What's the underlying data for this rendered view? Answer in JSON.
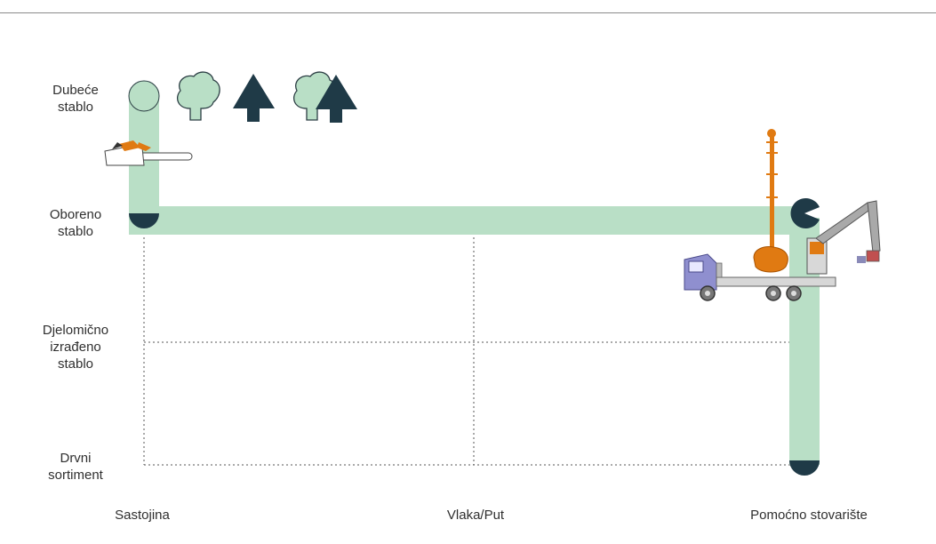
{
  "y_labels": {
    "standing_tree": [
      "Dubeće",
      "stablo"
    ],
    "felled_tree": [
      "Oboreno",
      "stablo"
    ],
    "partially_processed": [
      "Djelomično",
      "izrađeno",
      "stablo"
    ],
    "assortment": [
      "Drvni",
      "sortiment"
    ]
  },
  "x_labels": {
    "stand": "Sastojina",
    "skid_road": "Vlaka/Put",
    "landing": "Pomoćno stovarište"
  },
  "colors": {
    "path": "#b9dfc6",
    "dark": "#1f3a47",
    "orange": "#e07a12",
    "truck": "#8f8fcf"
  }
}
